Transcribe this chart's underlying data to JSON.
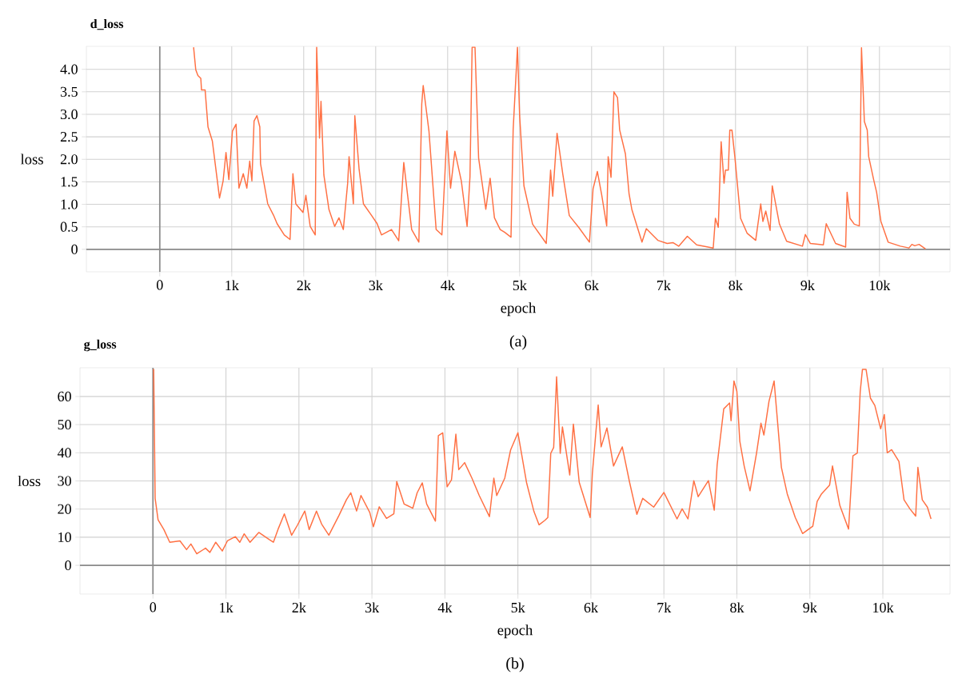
{
  "chart_data": [
    {
      "type": "line",
      "title": "d_loss",
      "xlabel": "epoch",
      "ylabel": "loss",
      "annotations": [
        "(a)"
      ],
      "xlim": [
        -1020,
        10980
      ],
      "ylim": [
        -0.5,
        4.51
      ],
      "xticks": [
        0,
        {
          "value": 1000,
          "label": "1k"
        },
        {
          "value": 2000,
          "label": "2k"
        },
        {
          "value": 3000,
          "label": "3k"
        },
        {
          "value": 4000,
          "label": "4k"
        },
        {
          "value": 5000,
          "label": "5k"
        },
        {
          "value": 6000,
          "label": "6k"
        },
        {
          "value": 7000,
          "label": "7k"
        },
        {
          "value": 8000,
          "label": "8k"
        },
        {
          "value": 9000,
          "label": "9k"
        },
        {
          "value": 10000,
          "label": "10k"
        }
      ],
      "yticks": [
        0,
        0.5,
        {
          "value": 1,
          "label": "1.0"
        },
        1.5,
        {
          "value": 2,
          "label": "2.0"
        },
        2.5,
        {
          "value": 3,
          "label": "3.0"
        },
        3.5,
        {
          "value": 4,
          "label": "4.0"
        }
      ],
      "grid": true,
      "marker": "none",
      "line_style": "solid",
      "series": [
        {
          "color": "#ff7043",
          "x": [
            470,
            500,
            530,
            570,
            580,
            630,
            670,
            730,
            760,
            830,
            880,
            920,
            960,
            1010,
            1060,
            1100,
            1160,
            1210,
            1250,
            1280,
            1310,
            1350,
            1390,
            1400,
            1500,
            1580,
            1630,
            1730,
            1810,
            1850,
            1890,
            1990,
            2030,
            2090,
            2160,
            2180,
            2220,
            2240,
            2280,
            2350,
            2430,
            2490,
            2550,
            2610,
            2630,
            2690,
            2710,
            2770,
            2830,
            2940,
            3020,
            3080,
            3220,
            3320,
            3390,
            3500,
            3600,
            3640,
            3660,
            3740,
            3840,
            3920,
            3960,
            3990,
            4040,
            4100,
            4190,
            4270,
            4310,
            4340,
            4380,
            4430,
            4530,
            4590,
            4650,
            4730,
            4790,
            4880,
            4910,
            4970,
            5000,
            5060,
            5180,
            5370,
            5430,
            5460,
            5520,
            5600,
            5690,
            5820,
            5970,
            6020,
            6080,
            6140,
            6210,
            6230,
            6270,
            6310,
            6360,
            6390,
            6470,
            6520,
            6560,
            6700,
            6760,
            6920,
            7050,
            7130,
            7210,
            7330,
            7460,
            7690,
            7720,
            7760,
            7800,
            7840,
            7860,
            7900,
            7920,
            7950,
            7990,
            8070,
            8160,
            8280,
            8350,
            8380,
            8420,
            8480,
            8510,
            8610,
            8710,
            8930,
            8970,
            9040,
            9220,
            9260,
            9390,
            9530,
            9550,
            9590,
            9650,
            9720,
            9750,
            9790,
            9830,
            9850,
            9920,
            9960,
            10020,
            10120,
            10290,
            10410,
            10450,
            10490,
            10550,
            10640
          ],
          "values": [
            4.49,
            3.99,
            3.86,
            3.8,
            3.54,
            3.54,
            2.72,
            2.41,
            2.03,
            1.14,
            1.52,
            2.15,
            1.55,
            2.63,
            2.78,
            1.36,
            1.68,
            1.36,
            1.96,
            1.52,
            2.85,
            2.97,
            2.72,
            1.9,
            1.01,
            0.76,
            0.57,
            0.32,
            0.22,
            1.68,
            1.01,
            0.82,
            1.2,
            0.51,
            0.32,
            4.49,
            2.47,
            3.29,
            1.65,
            0.89,
            0.51,
            0.7,
            0.44,
            1.46,
            2.06,
            1.01,
            2.97,
            1.77,
            1.01,
            0.76,
            0.57,
            0.32,
            0.44,
            0.19,
            1.93,
            0.44,
            0.16,
            3.23,
            3.64,
            2.63,
            0.44,
            0.32,
            1.61,
            2.63,
            1.36,
            2.18,
            1.52,
            0.51,
            1.61,
            4.49,
            4.49,
            2.03,
            0.89,
            1.58,
            0.7,
            0.44,
            0.38,
            0.27,
            2.66,
            4.49,
            2.97,
            1.41,
            0.56,
            0.13,
            1.76,
            1.18,
            2.58,
            1.67,
            0.75,
            0.49,
            0.16,
            1.34,
            1.73,
            1.21,
            0.52,
            2.06,
            1.6,
            3.5,
            3.37,
            2.65,
            2.12,
            1.24,
            0.88,
            0.16,
            0.46,
            0.2,
            0.13,
            0.15,
            0.07,
            0.29,
            0.1,
            0.03,
            0.69,
            0.49,
            2.39,
            1.47,
            1.76,
            1.76,
            2.65,
            2.65,
            2.06,
            0.69,
            0.36,
            0.2,
            1.01,
            0.62,
            0.85,
            0.42,
            1.41,
            0.56,
            0.18,
            0.07,
            0.33,
            0.13,
            0.1,
            0.57,
            0.13,
            0.05,
            1.27,
            0.69,
            0.56,
            0.52,
            4.48,
            2.84,
            2.65,
            2.06,
            1.54,
            1.27,
            0.62,
            0.16,
            0.07,
            0.03,
            0.11,
            0.08,
            0.11,
            0.01
          ]
        }
      ]
    },
    {
      "type": "line",
      "title": "g_loss",
      "xlabel": "epoch",
      "ylabel": "loss",
      "annotations": [
        "(b)"
      ],
      "xlim": [
        -1000,
        10920
      ],
      "ylim": [
        -10.2,
        70.2
      ],
      "xticks": [
        0,
        {
          "value": 1000,
          "label": "1k"
        },
        {
          "value": 2000,
          "label": "2k"
        },
        {
          "value": 3000,
          "label": "3k"
        },
        {
          "value": 4000,
          "label": "4k"
        },
        {
          "value": 5000,
          "label": "5k"
        },
        {
          "value": 6000,
          "label": "6k"
        },
        {
          "value": 7000,
          "label": "7k"
        },
        {
          "value": 8000,
          "label": "8k"
        },
        {
          "value": 9000,
          "label": "9k"
        },
        {
          "value": 10000,
          "label": "10k"
        }
      ],
      "yticks": [
        0,
        10,
        20,
        30,
        40,
        50,
        60
      ],
      "grid": true,
      "marker": "none",
      "line_style": "solid",
      "series": [
        {
          "color": "#ff7043",
          "x": [
            10,
            30,
            70,
            150,
            230,
            370,
            460,
            520,
            600,
            720,
            780,
            860,
            950,
            1020,
            1130,
            1190,
            1250,
            1330,
            1450,
            1590,
            1650,
            1720,
            1800,
            1900,
            1980,
            2080,
            2140,
            2240,
            2310,
            2410,
            2550,
            2650,
            2710,
            2790,
            2850,
            2970,
            3020,
            3100,
            3200,
            3300,
            3340,
            3440,
            3560,
            3620,
            3690,
            3750,
            3870,
            3910,
            3970,
            4030,
            4090,
            4150,
            4190,
            4270,
            4370,
            4470,
            4610,
            4670,
            4710,
            4820,
            4900,
            5000,
            5120,
            5220,
            5290,
            5370,
            5410,
            5450,
            5490,
            5530,
            5580,
            5610,
            5710,
            5760,
            5840,
            5990,
            6020,
            6100,
            6140,
            6220,
            6310,
            6430,
            6530,
            6630,
            6710,
            6860,
            7000,
            7180,
            7250,
            7330,
            7410,
            7470,
            7610,
            7690,
            7730,
            7820,
            7900,
            7920,
            7960,
            8000,
            8040,
            8100,
            8180,
            8270,
            8330,
            8370,
            8440,
            8510,
            8610,
            8690,
            8800,
            8900,
            9040,
            9100,
            9160,
            9270,
            9310,
            9410,
            9530,
            9590,
            9650,
            9690,
            9720,
            9770,
            9830,
            9890,
            9970,
            10020,
            10060,
            10120,
            10220,
            10290,
            10370,
            10450,
            10480,
            10540,
            10610,
            10660
          ],
          "values": [
            69.8,
            23.8,
            16.2,
            12.7,
            8.2,
            8.7,
            5.6,
            7.6,
            4.1,
            6.1,
            4.6,
            8.2,
            5.1,
            8.7,
            10.2,
            8.2,
            11.2,
            8.2,
            11.7,
            9.2,
            8.2,
            13.2,
            18.3,
            10.7,
            14.3,
            19.3,
            12.7,
            19.3,
            14.7,
            10.7,
            17.8,
            23.3,
            25.8,
            19.3,
            24.8,
            18.8,
            13.7,
            20.8,
            16.7,
            18.3,
            29.8,
            21.8,
            20.3,
            25.8,
            29.3,
            21.8,
            15.7,
            46.1,
            47.1,
            27.9,
            30.4,
            46.6,
            34,
            36.5,
            31,
            24.8,
            17.3,
            31,
            24.8,
            31,
            41,
            47.1,
            29.2,
            19.1,
            14.4,
            16,
            17,
            39.8,
            41.9,
            67,
            39.8,
            49.2,
            32.1,
            50.2,
            29.5,
            17,
            32.6,
            57,
            42.1,
            48.8,
            35.3,
            42.1,
            29.5,
            18.1,
            23.8,
            20.7,
            25.9,
            16.5,
            20.1,
            16.5,
            30.1,
            24.4,
            30.1,
            19.6,
            35.8,
            55.6,
            57.7,
            51.4,
            65.5,
            61.8,
            44.1,
            35.3,
            26.5,
            40,
            50.5,
            46.3,
            58.3,
            65.5,
            34.8,
            25.4,
            17,
            11.3,
            13.9,
            22.7,
            25.4,
            28.5,
            35.3,
            21.3,
            12.9,
            38.9,
            39.9,
            61.8,
            69.6,
            69.6,
            59.4,
            56.8,
            48.5,
            53.6,
            40,
            41.1,
            36.9,
            23.3,
            20.1,
            17.5,
            34.8,
            23.3,
            20.7,
            16.5
          ]
        }
      ]
    }
  ]
}
